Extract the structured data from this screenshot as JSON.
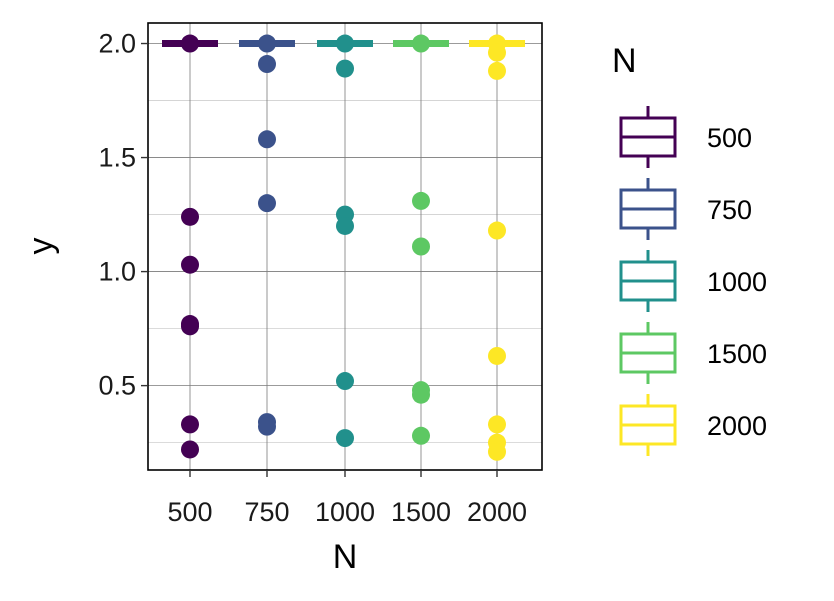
{
  "chart_data": {
    "type": "box+scatter",
    "xlabel": "N",
    "ylabel": "y",
    "categories": [
      "500",
      "750",
      "1000",
      "1500",
      "2000"
    ],
    "ylim": [
      0.13,
      2.09
    ],
    "yticks": [
      0.5,
      1.0,
      1.5,
      2.0
    ],
    "ytick_labels": [
      "0.5",
      "1.0",
      "1.5",
      "2.0"
    ],
    "grid": true,
    "legend": {
      "title": "N",
      "position": "right",
      "entries": [
        "500",
        "750",
        "1000",
        "1500",
        "2000"
      ]
    },
    "colors": [
      "#440154",
      "#3b528b",
      "#21908c",
      "#5dc863",
      "#fde725"
    ],
    "box_median": [
      2.0,
      2.0,
      2.0,
      2.0,
      2.0
    ],
    "points": [
      [
        2.0,
        1.24,
        1.03,
        0.77,
        0.76,
        0.33,
        0.22
      ],
      [
        2.0,
        1.91,
        1.58,
        1.3,
        0.34,
        0.32
      ],
      [
        2.0,
        1.89,
        1.25,
        1.2,
        0.52,
        0.27
      ],
      [
        2.0,
        1.31,
        1.11,
        0.48,
        0.46,
        0.28
      ],
      [
        2.0,
        1.96,
        1.88,
        1.18,
        0.63,
        0.33,
        0.25,
        0.21
      ]
    ]
  }
}
